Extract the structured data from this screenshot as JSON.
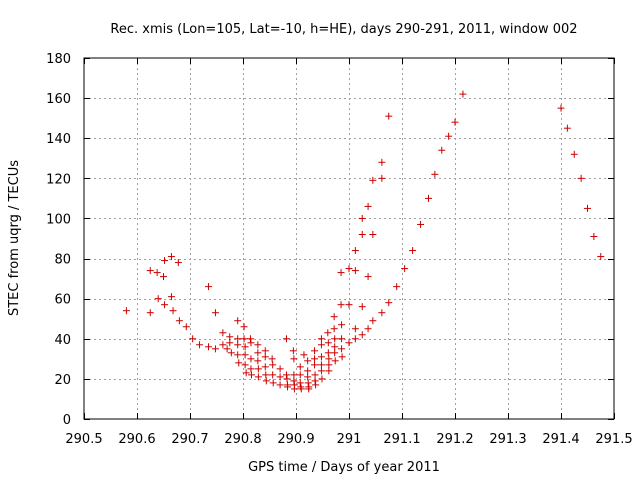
{
  "chart_data": {
    "type": "scatter",
    "title": "Rec. xmis (Lon=105, Lat=-10, h=HE), days 290-291, 2011, window 002",
    "xlabel": "GPS time / Days of year 2011",
    "ylabel": "STEC from uqrg / TECUs",
    "xlim": [
      290.5,
      291.5
    ],
    "ylim": [
      0,
      180
    ],
    "grid": true,
    "x_ticks": [
      290.5,
      290.6,
      290.7,
      290.8,
      290.9,
      291.0,
      291.1,
      291.2,
      291.3,
      291.4,
      291.5
    ],
    "x_tick_labels": [
      "290.5",
      "290.6",
      "290.7",
      "290.8",
      "290.9",
      "291",
      "291.1",
      "291.2",
      "291.3",
      "291.4",
      "291.5"
    ],
    "y_ticks": [
      0,
      20,
      40,
      60,
      80,
      100,
      120,
      140,
      160,
      180
    ],
    "y_tick_labels": [
      "0",
      "20",
      "40",
      "60",
      "80",
      "100",
      "120",
      "140",
      "160",
      "180"
    ],
    "marker": "+",
    "marker_color": "#cc0000",
    "series": [
      {
        "name": "STEC",
        "points": [
          [
            290.58,
            54
          ],
          [
            290.625,
            74
          ],
          [
            290.625,
            53
          ],
          [
            290.638,
            73
          ],
          [
            290.64,
            60
          ],
          [
            290.65,
            71
          ],
          [
            290.652,
            79
          ],
          [
            290.652,
            57
          ],
          [
            290.665,
            81
          ],
          [
            290.665,
            61
          ],
          [
            290.668,
            54
          ],
          [
            290.678,
            78
          ],
          [
            290.68,
            49
          ],
          [
            290.693,
            46
          ],
          [
            290.705,
            40
          ],
          [
            290.718,
            37
          ],
          [
            290.735,
            66
          ],
          [
            290.735,
            36
          ],
          [
            290.748,
            53
          ],
          [
            290.748,
            35
          ],
          [
            290.762,
            43
          ],
          [
            290.762,
            37
          ],
          [
            290.77,
            35
          ],
          [
            290.775,
            41
          ],
          [
            290.775,
            38
          ],
          [
            290.778,
            33
          ],
          [
            290.79,
            49
          ],
          [
            290.79,
            40
          ],
          [
            290.79,
            37
          ],
          [
            290.79,
            32
          ],
          [
            290.792,
            28
          ],
          [
            290.802,
            46
          ],
          [
            290.802,
            40
          ],
          [
            290.804,
            36
          ],
          [
            290.804,
            32
          ],
          [
            290.804,
            27
          ],
          [
            290.806,
            23
          ],
          [
            290.814,
            40
          ],
          [
            290.815,
            38
          ],
          [
            290.815,
            30
          ],
          [
            290.815,
            25
          ],
          [
            290.816,
            22
          ],
          [
            290.828,
            37
          ],
          [
            290.828,
            33
          ],
          [
            290.828,
            29
          ],
          [
            290.829,
            25
          ],
          [
            290.829,
            21
          ],
          [
            290.842,
            34
          ],
          [
            290.842,
            31
          ],
          [
            290.842,
            26
          ],
          [
            290.843,
            22
          ],
          [
            290.844,
            19
          ],
          [
            290.855,
            30
          ],
          [
            290.856,
            27
          ],
          [
            290.856,
            22
          ],
          [
            290.857,
            18
          ],
          [
            290.87,
            25
          ],
          [
            290.87,
            21
          ],
          [
            290.87,
            17
          ],
          [
            290.882,
            40
          ],
          [
            290.882,
            22
          ],
          [
            290.883,
            20
          ],
          [
            290.884,
            17
          ],
          [
            290.884,
            16
          ],
          [
            290.895,
            34
          ],
          [
            290.896,
            30
          ],
          [
            290.896,
            22
          ],
          [
            290.896,
            19
          ],
          [
            290.897,
            17
          ],
          [
            290.897,
            15
          ],
          [
            290.908,
            26
          ],
          [
            290.908,
            22
          ],
          [
            290.908,
            18
          ],
          [
            290.909,
            16
          ],
          [
            290.91,
            15
          ],
          [
            290.915,
            32
          ],
          [
            290.922,
            29
          ],
          [
            290.922,
            24
          ],
          [
            290.922,
            21
          ],
          [
            290.923,
            18
          ],
          [
            290.924,
            16
          ],
          [
            290.924,
            15
          ],
          [
            290.935,
            34
          ],
          [
            290.935,
            30
          ],
          [
            290.935,
            27
          ],
          [
            290.936,
            22
          ],
          [
            290.936,
            19
          ],
          [
            290.937,
            17
          ],
          [
            290.948,
            40
          ],
          [
            290.948,
            37
          ],
          [
            290.948,
            31
          ],
          [
            290.948,
            27
          ],
          [
            290.948,
            24
          ],
          [
            290.949,
            20
          ],
          [
            290.96,
            43
          ],
          [
            290.961,
            38
          ],
          [
            290.961,
            33
          ],
          [
            290.962,
            30
          ],
          [
            290.962,
            27
          ],
          [
            290.962,
            24
          ],
          [
            290.972,
            51
          ],
          [
            290.972,
            45
          ],
          [
            290.973,
            40
          ],
          [
            290.973,
            36
          ],
          [
            290.973,
            33
          ],
          [
            290.974,
            29
          ],
          [
            290.985,
            73
          ],
          [
            290.985,
            57
          ],
          [
            290.986,
            47
          ],
          [
            290.986,
            40
          ],
          [
            290.986,
            35
          ],
          [
            290.987,
            31
          ],
          [
            291.0,
            75
          ],
          [
            291.0,
            57
          ],
          [
            291.0,
            38
          ],
          [
            291.012,
            74
          ],
          [
            291.012,
            84
          ],
          [
            291.012,
            45
          ],
          [
            291.012,
            40
          ],
          [
            291.025,
            100
          ],
          [
            291.025,
            92
          ],
          [
            291.025,
            56
          ],
          [
            291.025,
            42
          ],
          [
            291.036,
            106
          ],
          [
            291.036,
            71
          ],
          [
            291.036,
            45
          ],
          [
            291.045,
            119
          ],
          [
            291.045,
            92
          ],
          [
            291.045,
            49
          ],
          [
            291.062,
            128
          ],
          [
            291.062,
            120
          ],
          [
            291.062,
            53
          ],
          [
            291.075,
            151
          ],
          [
            291.075,
            58
          ],
          [
            291.09,
            66
          ],
          [
            291.105,
            75
          ],
          [
            291.12,
            84
          ],
          [
            291.135,
            97
          ],
          [
            291.15,
            110
          ],
          [
            291.162,
            122
          ],
          [
            291.175,
            134
          ],
          [
            291.188,
            141
          ],
          [
            291.2,
            148
          ],
          [
            291.215,
            162
          ],
          [
            291.4,
            155
          ],
          [
            291.412,
            145
          ],
          [
            291.425,
            132
          ],
          [
            291.438,
            120
          ],
          [
            291.45,
            105
          ],
          [
            291.462,
            91
          ],
          [
            291.475,
            81
          ]
        ]
      }
    ]
  }
}
